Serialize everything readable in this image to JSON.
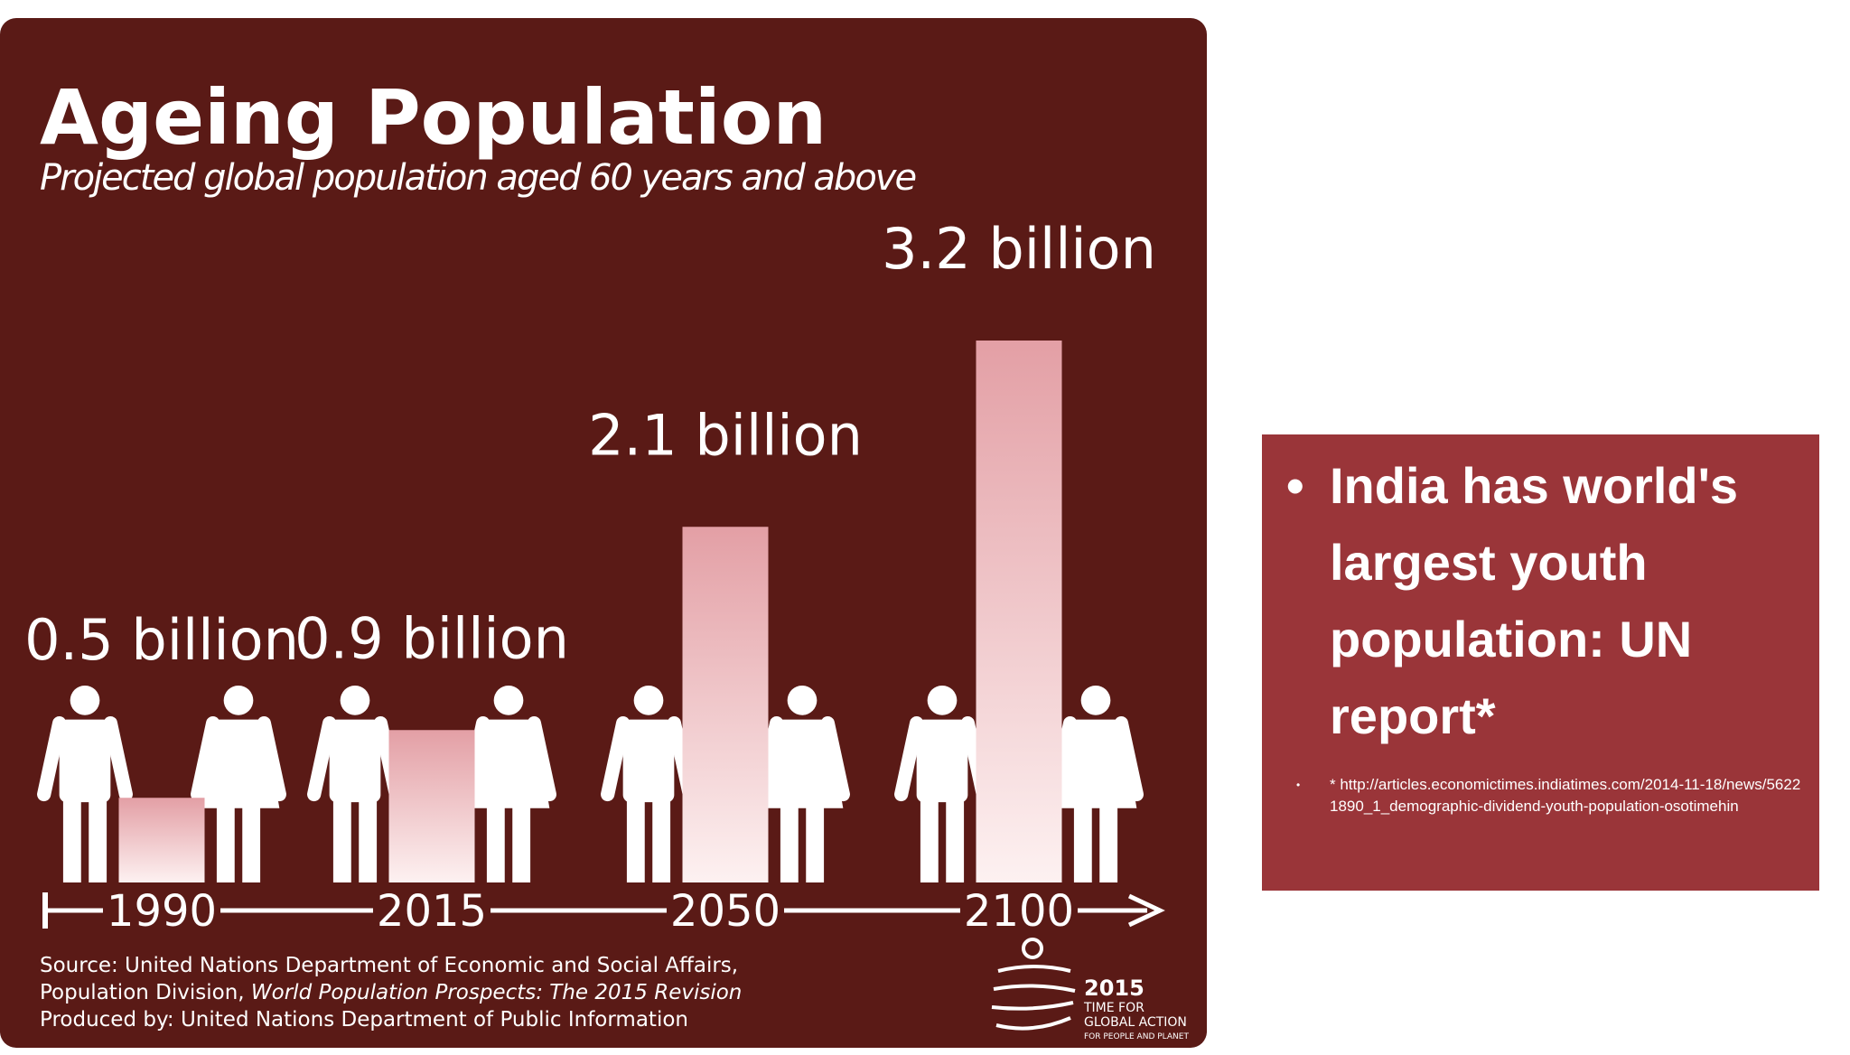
{
  "chart_data": {
    "type": "bar",
    "title": "Ageing Population",
    "subtitle": "Projected global population aged 60 years and above",
    "categories": [
      "1990",
      "2015",
      "2050",
      "2100"
    ],
    "values": [
      0.5,
      0.9,
      2.1,
      3.2
    ],
    "value_labels": [
      "0.5 billion",
      "0.9 billion",
      "2.1 billion",
      "3.2 billion"
    ],
    "color": "#f3c9cc",
    "source": {
      "line1": "Source: United Nations Department of Economic and Social Affairs,",
      "line2_plain": "Population Division, ",
      "line2_italic": "World Population Prospects: The 2015 Revision",
      "line3": "Produced by: United Nations Department of Public Information"
    },
    "logo": {
      "year": "2015",
      "line1": "TIME FOR",
      "line2": "GLOBAL ACTION",
      "line3": "FOR PEOPLE AND PLANET"
    }
  },
  "side_note": {
    "heading": "India has world's largest youth population: UN report*",
    "footnote": "* http://articles.economictimes.indiatimes.com/2014-11-18/news/56221890_1_demographic-dividend-youth-population-osotimehin"
  }
}
